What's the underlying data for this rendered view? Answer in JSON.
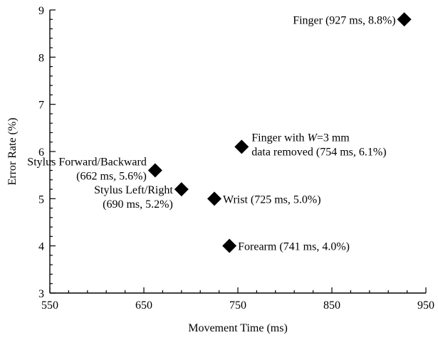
{
  "chart_data": {
    "type": "scatter",
    "title": "",
    "xlabel": "Movement Time (ms)",
    "ylabel": "Error Rate (%)",
    "xlim": [
      550,
      950
    ],
    "ylim": [
      3,
      9
    ],
    "x_ticks": [
      550,
      650,
      750,
      850,
      950
    ],
    "y_ticks": [
      3,
      4,
      5,
      6,
      7,
      8,
      9
    ],
    "grid": false,
    "marker": "diamond",
    "marker_color": "#000000",
    "points": [
      {
        "x": 927,
        "y": 8.8,
        "label_lines": [
          "Finger (927 ms, 8.8%)"
        ]
      },
      {
        "x": 754,
        "y": 6.1,
        "label_lines": [
          "Finger with W=3 mm",
          "data removed (754 ms, 6.1%)"
        ]
      },
      {
        "x": 662,
        "y": 5.6,
        "label_lines": [
          "Stylus Forward/Backward",
          "(662 ms, 5.6%)"
        ]
      },
      {
        "x": 690,
        "y": 5.2,
        "label_lines": [
          "Stylus Left/Right",
          "(690 ms, 5.2%)"
        ]
      },
      {
        "x": 725,
        "y": 5.0,
        "label_lines": [
          "Wrist (725 ms, 5.0%)"
        ]
      },
      {
        "x": 741,
        "y": 4.0,
        "label_lines": [
          "Forearm (741 ms, 4.0%)"
        ]
      }
    ]
  }
}
